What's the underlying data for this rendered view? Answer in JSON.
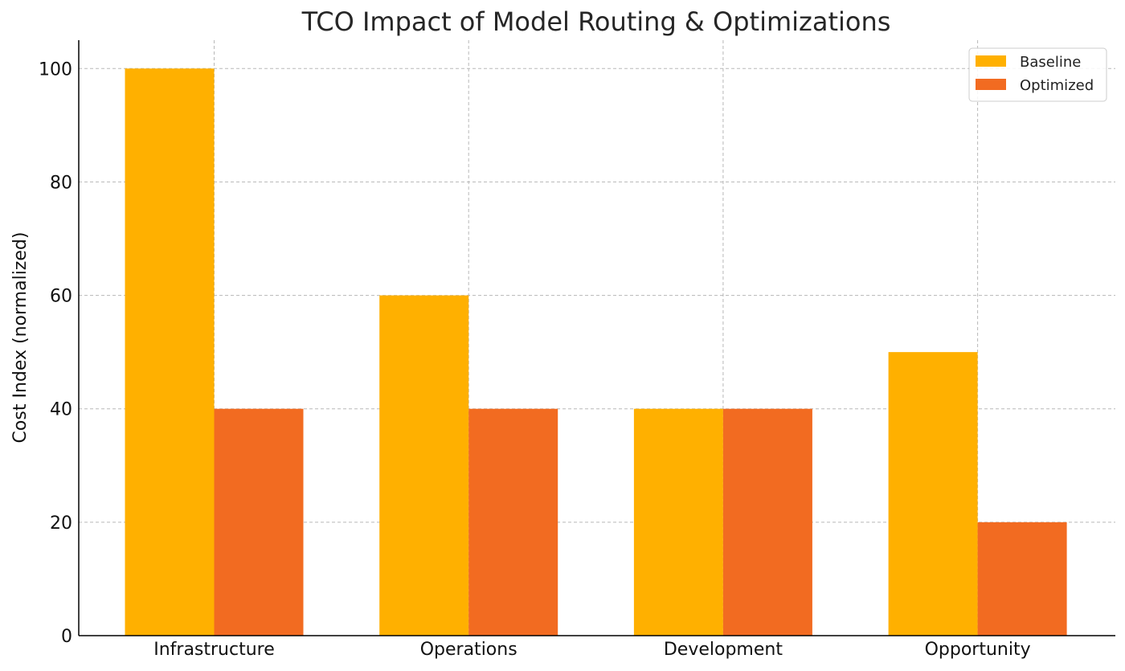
{
  "chart_data": {
    "type": "bar",
    "title": "TCO Impact of Model Routing & Optimizations",
    "xlabel": "",
    "ylabel": "Cost Index (normalized)",
    "categories": [
      "Infrastructure",
      "Operations",
      "Development",
      "Opportunity"
    ],
    "series": [
      {
        "name": "Baseline",
        "values": [
          100,
          60,
          40,
          50
        ],
        "color": "#FFB000"
      },
      {
        "name": "Optimized",
        "values": [
          40,
          40,
          40,
          20
        ],
        "color": "#F26B21"
      }
    ],
    "ylim": [
      0,
      105
    ],
    "yticks": [
      0,
      20,
      40,
      60,
      80,
      100
    ],
    "grid": true,
    "legend_position": "top-right"
  }
}
